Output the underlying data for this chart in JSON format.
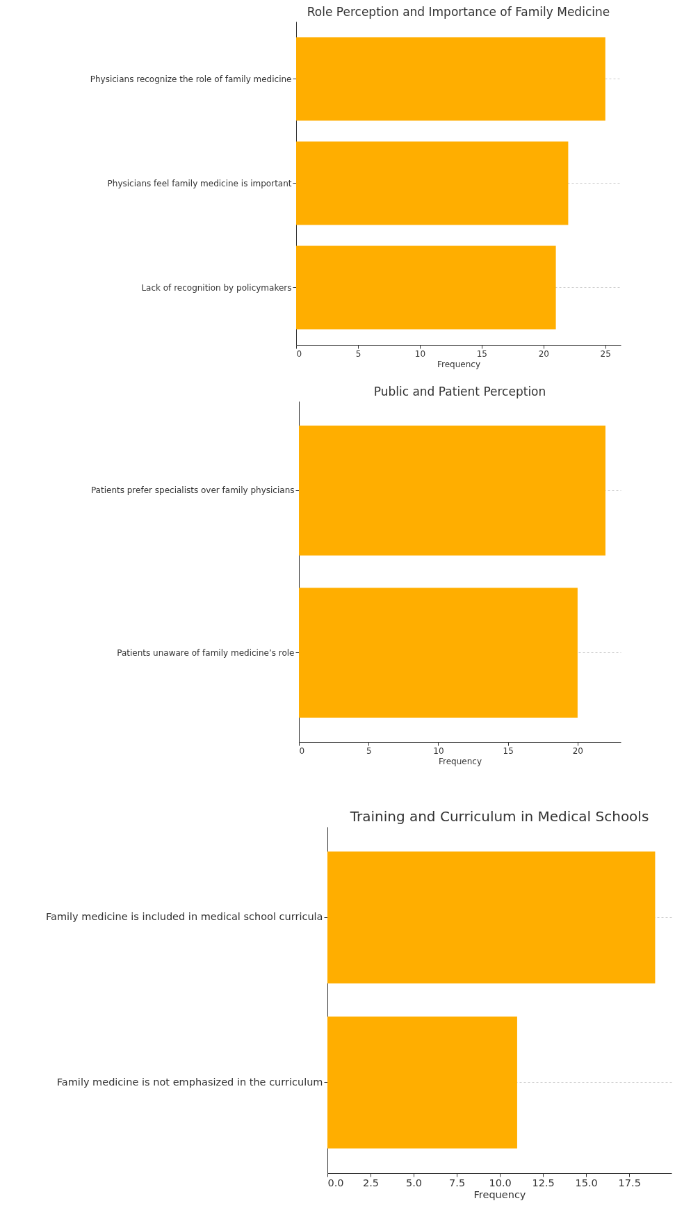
{
  "chart_data": [
    {
      "type": "bar",
      "orientation": "horizontal",
      "title": "Role Perception and Importance of Family Medicine",
      "xlabel": "Frequency",
      "categories": [
        "Physicians recognize the role of family medicine",
        "Physicians feel family medicine is important",
        "Lack of recognition by policymakers"
      ],
      "values": [
        25,
        22,
        21
      ],
      "color": "#ffae00",
      "xlim": [
        0,
        26.25
      ],
      "xticks": [
        0,
        5,
        10,
        15,
        20,
        25
      ],
      "grid": "y"
    },
    {
      "type": "bar",
      "orientation": "horizontal",
      "title": "Public and Patient Perception",
      "xlabel": "Frequency",
      "categories": [
        "Patients prefer specialists over family physicians",
        "Patients unaware of family medicine’s role"
      ],
      "values": [
        22,
        20
      ],
      "color": "#ffae00",
      "xlim": [
        0,
        23.1
      ],
      "xticks": [
        0,
        5,
        10,
        15,
        20
      ],
      "grid": "y"
    },
    {
      "type": "bar",
      "orientation": "horizontal",
      "title": "Training and Curriculum in Medical Schools",
      "xlabel": "Frequency",
      "categories": [
        "Family medicine is included in medical school curricula",
        "Family medicine is not emphasized in the curriculum"
      ],
      "values": [
        19,
        11
      ],
      "color": "#ffae00",
      "xlim": [
        0,
        19.95
      ],
      "xticks": [
        {
          "value": 0,
          "label": "0.0"
        },
        {
          "value": 2.5,
          "label": "2.5"
        },
        {
          "value": 5,
          "label": "5.0"
        },
        {
          "value": 7.5,
          "label": "7.5"
        },
        {
          "value": 10,
          "label": "10.0"
        },
        {
          "value": 12.5,
          "label": "12.5"
        },
        {
          "value": 15,
          "label": "15.0"
        },
        {
          "value": 17.5,
          "label": "17.5"
        }
      ],
      "grid": "y"
    }
  ]
}
